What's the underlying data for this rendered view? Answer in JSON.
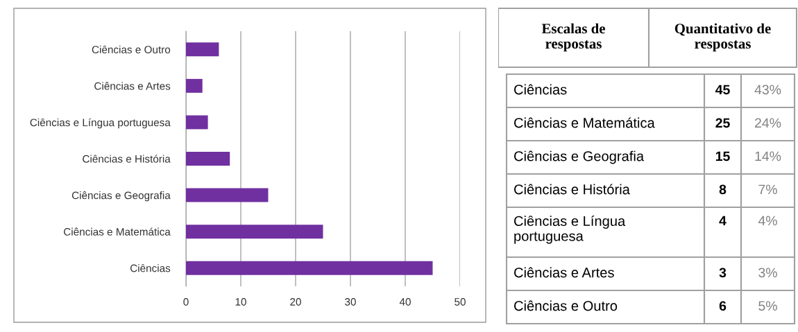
{
  "chart_data": [
    {
      "type": "bar",
      "orientation": "horizontal",
      "categories": [
        "Ciências e Outro",
        "Ciências e Artes",
        "Ciências e Língua portuguesa",
        "Ciências e História",
        "Ciências e Geografia",
        "Ciências e Matemática",
        "Ciências"
      ],
      "values": [
        6,
        3,
        4,
        8,
        15,
        25,
        45
      ],
      "color": "#7030a0",
      "xlim": [
        0,
        50
      ],
      "xticks": [
        0,
        10,
        20,
        30,
        40,
        50
      ],
      "grid": "x",
      "legend": false
    },
    {
      "type": "other",
      "data_labels": true,
      "annotations": [
        "Escalas de respostas",
        "Quantitativo de respostas"
      ],
      "categories": [
        "Ciências",
        "Ciências e Matemática",
        "Ciências e Geografia",
        "Ciências e História",
        "Ciências e Língua portuguesa",
        "Ciências e Artes",
        "Ciências e Outro"
      ],
      "series": [
        {
          "values": [
            45,
            25,
            15,
            8,
            4,
            3,
            6
          ]
        },
        {
          "values": [
            43,
            24,
            14,
            7,
            4,
            3,
            5
          ],
          "value_labels": [
            "43%",
            "24%",
            "14%",
            "7%",
            "4%",
            "3%",
            "5%"
          ]
        }
      ]
    }
  ]
}
